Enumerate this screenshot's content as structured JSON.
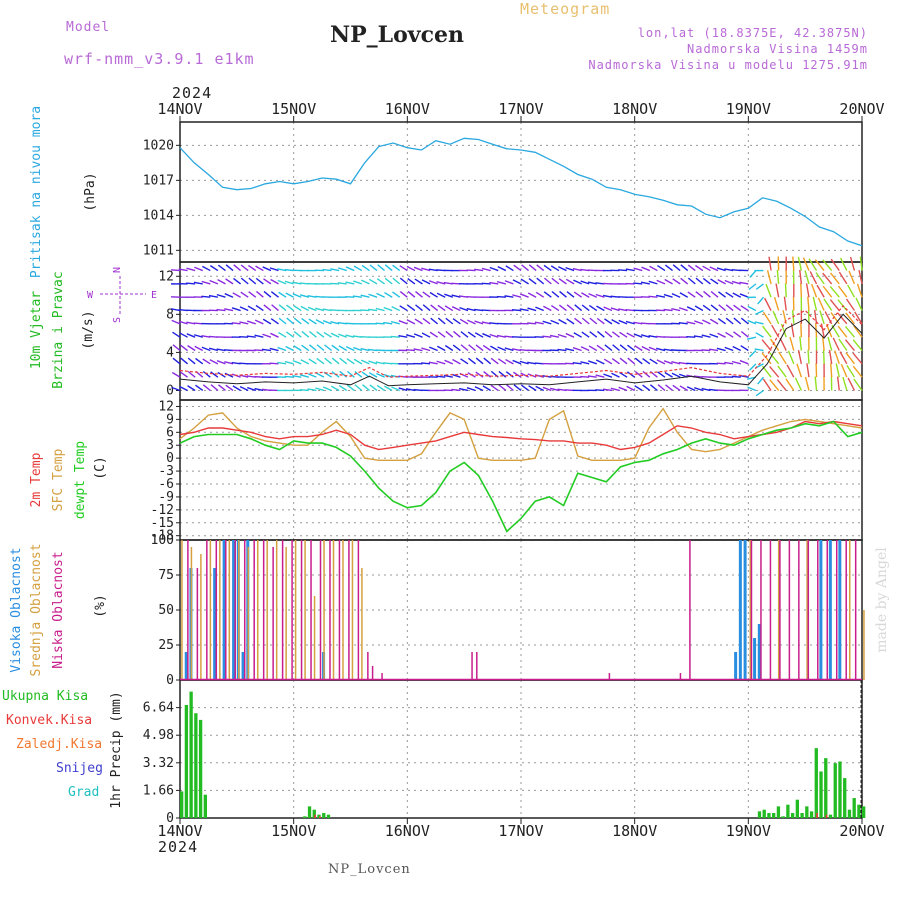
{
  "header": {
    "model_label": "Model",
    "model_name": "wrf-nmm_v3.9.1 e1km",
    "station": "NP_Lovcen",
    "meteogram": "Meteogram",
    "lonlat": "lon,lat (18.8375E, 42.3875N)",
    "altitude": "Nadmorska Visina 1459m",
    "model_altitude": "Nadmorska Visina u modelu 1275.91m",
    "year_top": "2024",
    "year_bottom": "2024",
    "footer_station": "NP_Lovcen",
    "watermark": "made by Angel"
  },
  "colors": {
    "pressure": "#2aa8e0",
    "wind_label": "#22bb22",
    "compass": "#a030d0",
    "t2m": "#e83a3a",
    "sfc": "#d4a040",
    "dew": "#22cc22",
    "high": "#2a8ee0",
    "mid": "#d4a040",
    "low": "#c81e8c",
    "total": "#22bb22",
    "conv": "#e83a3a",
    "frozen": "#f07830",
    "snow": "#4040d0",
    "grad": "#20c0c0",
    "arrows": [
      "#2020e0",
      "#8a2ae0",
      "#20c0e0",
      "#30d0d0",
      "#f0a020",
      "#e05050",
      "#90e020"
    ]
  },
  "axis": {
    "dates": [
      "14NOV",
      "15NOV",
      "16NOV",
      "17NOV",
      "18NOV",
      "19NOV",
      "20NOV"
    ]
  },
  "panels": {
    "pressure": {
      "label": "Pritisak na nivou mora",
      "unit": "(hPa)"
    },
    "wind": {
      "label1": "10m Vjetar",
      "label2": "Brzina i Pravac",
      "unit": "(m/s)",
      "compass_n": "N",
      "compass_s": "S",
      "compass_e": "E",
      "compass_w": "W"
    },
    "temp": {
      "label1": "2m Temp",
      "label2": "SFC Temp",
      "label3": "dewpt Temp",
      "unit": "(C)"
    },
    "cloud": {
      "label1": "Visoka Oblacnost",
      "label2": "Srednja Oblacnost",
      "label3": "Niska Oblacnost",
      "unit": "(%)"
    },
    "precip": {
      "unit": "1hr Precip (mm)",
      "legend": [
        "Ukupna Kisa",
        "Konvek.Kisa",
        "Zaledj.Kisa",
        "Snijeg",
        "Grad"
      ]
    }
  },
  "chart_data": [
    {
      "type": "line",
      "title": "Pritisak na nivou mora",
      "ylabel": "(hPa)",
      "x_unit": "hours from 14NOV 00",
      "ylim": [
        1010,
        1022
      ],
      "yticks": [
        1011,
        1014,
        1017,
        1020
      ],
      "series": [
        {
          "name": "Pritisak na nivou mora",
          "x": [
            0,
            3,
            6,
            9,
            12,
            15,
            18,
            21,
            24,
            27,
            30,
            33,
            36,
            39,
            42,
            45,
            48,
            51,
            54,
            57,
            60,
            63,
            66,
            69,
            72,
            75,
            78,
            81,
            84,
            87,
            90,
            93,
            96,
            99,
            102,
            105,
            108,
            111,
            114,
            117,
            120,
            123,
            126,
            129,
            132,
            135,
            138,
            141,
            144
          ],
          "values": [
            1019.8,
            1018.5,
            1017.5,
            1016.4,
            1016.2,
            1016.3,
            1016.7,
            1016.9,
            1016.7,
            1016.9,
            1017.2,
            1017.1,
            1016.7,
            1018.5,
            1019.9,
            1020.2,
            1019.8,
            1019.6,
            1020.4,
            1020.1,
            1020.6,
            1020.5,
            1020.1,
            1019.7,
            1019.6,
            1019.4,
            1018.8,
            1018.2,
            1017.5,
            1017.1,
            1016.4,
            1016.2,
            1015.8,
            1015.6,
            1015.3,
            1014.9,
            1014.8,
            1014.1,
            1013.8,
            1014.3,
            1014.6,
            1015.5,
            1015.2,
            1014.6,
            1013.9,
            1013.0,
            1012.6,
            1011.8,
            1011.4
          ]
        }
      ]
    },
    {
      "type": "line",
      "title": "10m Vjetar Brzina i Pravac",
      "ylabel": "(m/s)",
      "x_unit": "hours from 14NOV 00",
      "ylim": [
        -1,
        13.5
      ],
      "yticks": [
        0,
        4,
        8,
        12
      ],
      "series": [
        {
          "name": "Brzina",
          "x": [
            0,
            6,
            12,
            18,
            24,
            30,
            36,
            40,
            44,
            48,
            54,
            60,
            66,
            72,
            78,
            84,
            90,
            96,
            102,
            108,
            114,
            120,
            124,
            128,
            132,
            136,
            140,
            144
          ],
          "values": [
            1.2,
            0.9,
            0.7,
            0.9,
            0.8,
            1.0,
            0.6,
            1.5,
            0.5,
            0.6,
            0.7,
            0.8,
            0.6,
            0.7,
            0.6,
            0.9,
            1.2,
            0.8,
            1.1,
            1.5,
            0.9,
            0.6,
            2.8,
            6.5,
            7.5,
            5.5,
            8.0,
            6.0
          ]
        }
      ]
    },
    {
      "type": "line",
      "title": "2m Temp / SFC Temp / dewpt Temp",
      "ylabel": "(C)",
      "x_unit": "hours from 14NOV 00",
      "ylim": [
        -19,
        13.5
      ],
      "yticks": [
        -18,
        -15,
        -12,
        -9,
        -6,
        -3,
        0,
        3,
        6,
        9,
        12
      ],
      "series": [
        {
          "name": "2m Temp",
          "x": [
            0,
            3,
            6,
            9,
            12,
            15,
            18,
            21,
            24,
            27,
            30,
            33,
            36,
            39,
            42,
            45,
            48,
            51,
            54,
            57,
            60,
            63,
            66,
            69,
            72,
            75,
            78,
            81,
            84,
            87,
            90,
            93,
            96,
            99,
            102,
            105,
            108,
            111,
            114,
            117,
            120,
            123,
            126,
            129,
            132,
            135,
            138,
            141,
            144
          ],
          "values": [
            5.5,
            6.0,
            7.0,
            7.0,
            6.5,
            6.0,
            5.0,
            4.5,
            5.0,
            5.0,
            5.5,
            6.5,
            5.5,
            3.0,
            2.0,
            2.5,
            3.0,
            3.5,
            4.0,
            5.0,
            6.0,
            5.5,
            5.0,
            4.8,
            4.5,
            4.3,
            4.0,
            4.0,
            3.5,
            3.5,
            3.0,
            2.0,
            2.5,
            3.5,
            5.5,
            7.5,
            7.0,
            6.0,
            5.5,
            4.5,
            5.0,
            5.5,
            6.0,
            7.0,
            8.5,
            8.0,
            8.5,
            8.0,
            7.5
          ]
        },
        {
          "name": "SFC Temp",
          "x": [
            0,
            3,
            6,
            9,
            12,
            15,
            18,
            21,
            24,
            27,
            30,
            33,
            36,
            39,
            42,
            45,
            48,
            51,
            54,
            57,
            60,
            63,
            66,
            69,
            72,
            75,
            78,
            81,
            84,
            87,
            90,
            93,
            96,
            99,
            102,
            105,
            108,
            111,
            114,
            117,
            120,
            123,
            126,
            129,
            132,
            135,
            138,
            141,
            144
          ],
          "values": [
            4.5,
            7.0,
            10.0,
            10.5,
            7.0,
            5.0,
            4.0,
            3.5,
            3.0,
            3.0,
            6.0,
            8.5,
            5.0,
            0.0,
            -0.5,
            -0.5,
            -0.5,
            1.0,
            6.0,
            10.5,
            9.0,
            0.0,
            -0.5,
            -0.5,
            -0.5,
            0.0,
            9.0,
            11.0,
            0.5,
            -0.5,
            -0.5,
            -0.5,
            0.0,
            7.0,
            11.5,
            6.0,
            2.0,
            1.5,
            2.0,
            3.5,
            5.0,
            6.5,
            7.5,
            8.5,
            9.0,
            8.5,
            8.0,
            7.5,
            7.0
          ]
        },
        {
          "name": "dewpt Temp",
          "x": [
            0,
            3,
            6,
            9,
            12,
            15,
            18,
            21,
            24,
            27,
            30,
            33,
            36,
            39,
            42,
            45,
            48,
            51,
            54,
            57,
            60,
            63,
            66,
            69,
            72,
            75,
            78,
            81,
            84,
            87,
            90,
            93,
            96,
            99,
            102,
            105,
            108,
            111,
            114,
            117,
            120,
            123,
            126,
            129,
            132,
            135,
            138,
            141,
            144
          ],
          "values": [
            3.5,
            5.0,
            5.5,
            5.5,
            5.5,
            4.5,
            3.0,
            2.0,
            4.0,
            3.5,
            3.5,
            2.5,
            0.5,
            -3.0,
            -7.0,
            -10.0,
            -11.5,
            -11.0,
            -8.0,
            -3.0,
            -1.0,
            -4.0,
            -10.0,
            -17.0,
            -14.0,
            -10.0,
            -9.0,
            -11.0,
            -3.5,
            -4.5,
            -5.5,
            -2.0,
            -1.0,
            -0.5,
            1.0,
            2.0,
            3.5,
            4.5,
            3.5,
            3.0,
            4.5,
            5.5,
            6.5,
            7.0,
            8.0,
            7.5,
            8.5,
            5.0,
            6.0
          ]
        }
      ]
    },
    {
      "type": "bar",
      "title": "Visoka / Srednja / Niska Oblacnost",
      "ylabel": "(%)",
      "ylim": [
        0,
        100
      ],
      "yticks": [
        0,
        25,
        50,
        75,
        100
      ],
      "series": [
        {
          "name": "Visoka Oblacnost",
          "x": [
            1,
            2,
            7,
            9,
            11,
            12,
            13,
            14,
            30,
            117,
            118,
            119,
            121,
            122,
            135,
            137,
            139
          ],
          "values": [
            20,
            80,
            80,
            100,
            100,
            100,
            20,
            100,
            20,
            20,
            100,
            100,
            30,
            40,
            100,
            100,
            100
          ]
        },
        {
          "name": "Srednja Oblacnost",
          "x": [
            0,
            2,
            4,
            6,
            8,
            10,
            12,
            14,
            16,
            18,
            20,
            22,
            24,
            26,
            28,
            30,
            32,
            34,
            36,
            38,
            120,
            126,
            132,
            141,
            144
          ],
          "values": [
            100,
            95,
            90,
            100,
            100,
            100,
            100,
            95,
            100,
            100,
            100,
            95,
            100,
            100,
            60,
            100,
            100,
            100,
            100,
            80,
            100,
            100,
            100,
            100,
            50
          ]
        },
        {
          "name": "Niska Oblacnost",
          "x": [
            1,
            3,
            5,
            7,
            9,
            11,
            13,
            15,
            17,
            19,
            21,
            23,
            25,
            27,
            29,
            31,
            33,
            35,
            37,
            39,
            40,
            42,
            61,
            62,
            90,
            105,
            107,
            120,
            122,
            124,
            126,
            128,
            130,
            132,
            134,
            136,
            138,
            140,
            142
          ],
          "values": [
            100,
            80,
            100,
            100,
            100,
            100,
            100,
            100,
            100,
            95,
            100,
            100,
            100,
            100,
            100,
            100,
            100,
            100,
            100,
            20,
            10,
            5,
            20,
            20,
            5,
            5,
            100,
            100,
            100,
            100,
            100,
            100,
            100,
            100,
            100,
            100,
            100,
            100,
            100
          ]
        }
      ]
    },
    {
      "type": "bar",
      "title": "1hr Precip",
      "ylabel": "1hr Precip (mm)",
      "ylim": [
        0,
        8.3
      ],
      "yticks": [
        0,
        1.66,
        3.32,
        4.98,
        6.64
      ],
      "series": [
        {
          "name": "Ukupna Kisa",
          "x": [
            0,
            1,
            2,
            3,
            4,
            5,
            26,
            27,
            28,
            29,
            30,
            31,
            122,
            123,
            124,
            125,
            126,
            127,
            128,
            129,
            130,
            131,
            132,
            133,
            134,
            135,
            136,
            137,
            138,
            139,
            140,
            141,
            142,
            143,
            144
          ],
          "values": [
            1.6,
            6.8,
            7.6,
            6.3,
            5.9,
            1.4,
            0.1,
            0.7,
            0.5,
            0.2,
            0.3,
            0.2,
            0.4,
            0.5,
            0.3,
            0.3,
            0.7,
            0.1,
            0.8,
            0.3,
            1.1,
            0.3,
            0.7,
            0.4,
            4.2,
            2.8,
            3.6,
            0.2,
            3.3,
            3.4,
            2.4,
            0.5,
            1.2,
            0.8,
            0.7
          ]
        },
        {
          "name": "Konvek.Kisa",
          "x": [
            28,
            29,
            134,
            136
          ],
          "values": [
            0.2,
            0.1,
            0.3,
            0.2
          ]
        }
      ]
    }
  ]
}
